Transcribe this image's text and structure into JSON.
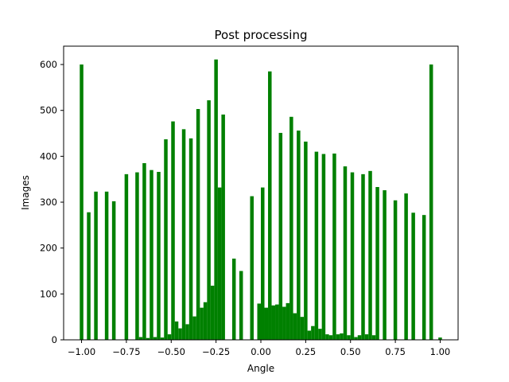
{
  "chart_data": {
    "type": "bar",
    "title": "Post processing",
    "xlabel": "Angle",
    "ylabel": "Images",
    "xlim": [
      -1.1,
      1.1
    ],
    "ylim": [
      0,
      640
    ],
    "bar_color": "#008000",
    "bin_width": 0.02,
    "grid": false,
    "legend": "none",
    "x_ticks": [
      -1.0,
      -0.75,
      -0.5,
      -0.25,
      0.0,
      0.25,
      0.5,
      0.75,
      1.0
    ],
    "x_tick_labels": [
      "−1.00",
      "−0.75",
      "−0.50",
      "−0.25",
      "0.00",
      "0.25",
      "0.50",
      "0.75",
      "1.00"
    ],
    "y_ticks": [
      0,
      100,
      200,
      300,
      400,
      500,
      600
    ],
    "y_tick_labels": [
      "0",
      "100",
      "200",
      "300",
      "400",
      "500",
      "600"
    ],
    "x": [
      -1.0,
      -0.96,
      -0.92,
      -0.86,
      -0.82,
      -0.75,
      -0.69,
      -0.67,
      -0.65,
      -0.63,
      -0.61,
      -0.59,
      -0.57,
      -0.55,
      -0.53,
      -0.51,
      -0.49,
      -0.47,
      -0.45,
      -0.43,
      -0.41,
      -0.39,
      -0.37,
      -0.35,
      -0.33,
      -0.31,
      -0.29,
      -0.27,
      -0.25,
      -0.23,
      -0.21,
      -0.15,
      -0.11,
      -0.05,
      -0.01,
      0.01,
      0.03,
      0.05,
      0.07,
      0.09,
      0.11,
      0.13,
      0.15,
      0.17,
      0.19,
      0.21,
      0.23,
      0.25,
      0.27,
      0.29,
      0.31,
      0.33,
      0.35,
      0.37,
      0.39,
      0.41,
      0.43,
      0.45,
      0.47,
      0.49,
      0.51,
      0.53,
      0.55,
      0.57,
      0.59,
      0.61,
      0.63,
      0.65,
      0.69,
      0.75,
      0.81,
      0.85,
      0.91,
      0.95,
      1.0
    ],
    "values": [
      600,
      278,
      323,
      323,
      302,
      361,
      365,
      6,
      385,
      4,
      370,
      6,
      366,
      5,
      437,
      12,
      476,
      40,
      25,
      459,
      34,
      439,
      51,
      503,
      70,
      82,
      522,
      118,
      611,
      332,
      491,
      177,
      150,
      313,
      79,
      332,
      70,
      585,
      75,
      77,
      451,
      72,
      80,
      486,
      58,
      456,
      50,
      432,
      20,
      30,
      410,
      24,
      405,
      12,
      10,
      406,
      12,
      14,
      378,
      10,
      365,
      6,
      10,
      361,
      12,
      368,
      10,
      333,
      326,
      304,
      319,
      277,
      272,
      600,
      5
    ]
  }
}
